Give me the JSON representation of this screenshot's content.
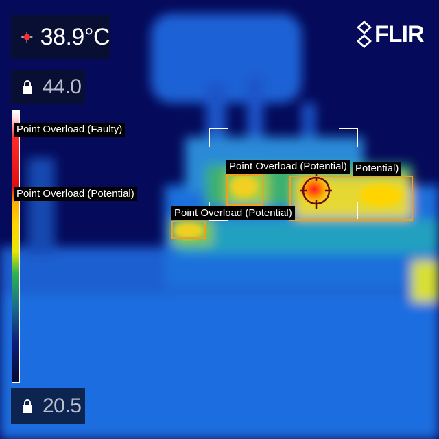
{
  "readout": {
    "spot_temperature": "38.9°C",
    "spot_icon": "crosshair-spot-icon"
  },
  "scale": {
    "max_value": "44.0",
    "min_value": "20.5",
    "lock_icon": "lock-icon"
  },
  "brand": {
    "name": "FLIR",
    "logo_icon": "flir-logo-icon"
  },
  "palette": {
    "hot": "#ff2020",
    "warm": "#ffd400",
    "mid": "#2fb34d",
    "cool": "#1a5fd0",
    "cold": "#050a5a",
    "roi_border": "#f0a020"
  },
  "colorbar_labels": [
    {
      "text": "Point Overload (Faulty)"
    },
    {
      "text": "Point Overload (Potential)"
    }
  ],
  "detections": [
    {
      "label": "Point Overload (Potential)"
    },
    {
      "label": "Point Overload (Potential)"
    },
    {
      "label": "Potential)"
    }
  ]
}
